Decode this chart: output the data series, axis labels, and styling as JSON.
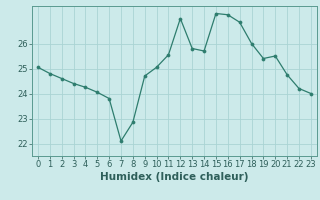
{
  "x": [
    0,
    1,
    2,
    3,
    4,
    5,
    6,
    7,
    8,
    9,
    10,
    11,
    12,
    13,
    14,
    15,
    16,
    17,
    18,
    19,
    20,
    21,
    22,
    23
  ],
  "y": [
    25.05,
    24.8,
    24.6,
    24.4,
    24.25,
    24.05,
    23.8,
    22.1,
    22.85,
    24.7,
    25.05,
    25.55,
    27.0,
    25.8,
    25.7,
    27.2,
    27.15,
    26.85,
    26.0,
    25.4,
    25.5,
    24.75,
    24.2,
    24.0
  ],
  "xlabel": "Humidex (Indice chaleur)",
  "ylim": [
    21.5,
    27.5
  ],
  "xlim": [
    -0.5,
    23.5
  ],
  "yticks": [
    22,
    23,
    24,
    25,
    26
  ],
  "xticks": [
    0,
    1,
    2,
    3,
    4,
    5,
    6,
    7,
    8,
    9,
    10,
    11,
    12,
    13,
    14,
    15,
    16,
    17,
    18,
    19,
    20,
    21,
    22,
    23
  ],
  "line_color": "#2e7d6e",
  "marker_color": "#2e7d6e",
  "bg_color": "#cceaea",
  "grid_color": "#aad4d4",
  "label_fontsize": 7.5,
  "tick_fontsize": 6.0,
  "tick_color": "#2e5f5a"
}
